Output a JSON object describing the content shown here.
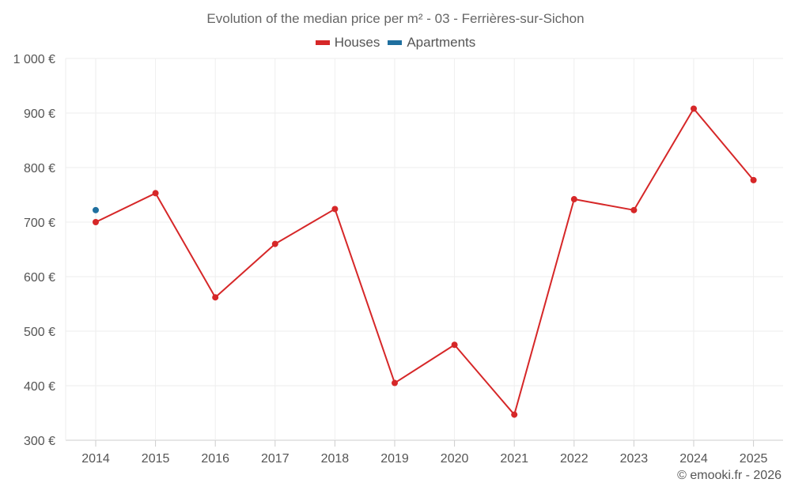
{
  "chart_data": {
    "type": "line",
    "title": "Evolution of the median price per m² - 03 - Ferrières-sur-Sichon",
    "x": [
      "2014",
      "2015",
      "2016",
      "2017",
      "2018",
      "2019",
      "2020",
      "2021",
      "2022",
      "2023",
      "2024",
      "2025"
    ],
    "series": [
      {
        "name": "Houses",
        "color": "#d62728",
        "values": [
          700,
          753,
          562,
          660,
          724,
          405,
          475,
          347,
          742,
          722,
          908,
          777
        ]
      },
      {
        "name": "Apartments",
        "color": "#1f6f9f",
        "values": [
          722,
          null,
          null,
          null,
          null,
          null,
          null,
          null,
          null,
          null,
          null,
          null
        ]
      }
    ],
    "ylim": [
      300,
      1000
    ],
    "yticks": [
      300,
      400,
      500,
      600,
      700,
      800,
      900,
      1000
    ],
    "ytick_labels": [
      "300 €",
      "400 €",
      "500 €",
      "600 €",
      "700 €",
      "800 €",
      "900 €",
      "1 000 €"
    ],
    "grid": true,
    "legend_position": "top-center"
  },
  "credit": "© emooki.fr - 2026"
}
